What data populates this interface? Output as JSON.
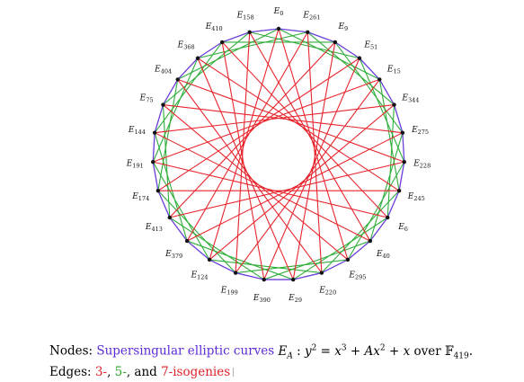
{
  "nodes": [
    {
      "name": "E",
      "sub": "0"
    },
    {
      "name": "E",
      "sub": "261"
    },
    {
      "name": "E",
      "sub": "9"
    },
    {
      "name": "E",
      "sub": "51"
    },
    {
      "name": "E",
      "sub": "15"
    },
    {
      "name": "E",
      "sub": "344"
    },
    {
      "name": "E",
      "sub": "275"
    },
    {
      "name": "E",
      "sub": "228"
    },
    {
      "name": "E",
      "sub": "245"
    },
    {
      "name": "E",
      "sub": "6"
    },
    {
      "name": "E",
      "sub": "40"
    },
    {
      "name": "E",
      "sub": "295"
    },
    {
      "name": "E",
      "sub": "220"
    },
    {
      "name": "E",
      "sub": "29"
    },
    {
      "name": "E",
      "sub": "390"
    },
    {
      "name": "E",
      "sub": "199"
    },
    {
      "name": "E",
      "sub": "124"
    },
    {
      "name": "E",
      "sub": "379"
    },
    {
      "name": "E",
      "sub": "413"
    },
    {
      "name": "E",
      "sub": "174"
    },
    {
      "name": "E",
      "sub": "191"
    },
    {
      "name": "E",
      "sub": "144"
    },
    {
      "name": "E",
      "sub": "75"
    },
    {
      "name": "E",
      "sub": "404"
    },
    {
      "name": "E",
      "sub": "368"
    },
    {
      "name": "E",
      "sub": "410"
    },
    {
      "name": "E",
      "sub": "158"
    }
  ],
  "edge_steps": {
    "blue": 1,
    "green": 4,
    "red": 11
  },
  "colors": {
    "node_edges": "#6a3fd8",
    "green_edges": "#2fae3a",
    "red_edges": "#e8252d",
    "node": "#111111"
  },
  "caption": {
    "line1_prefix": "Nodes: ",
    "line1_colored": "Supersingular elliptic curves",
    "line1_math": " E_A : y² = x³ + Ax² + x over 𝔽₄₁₉.",
    "line2_prefix": "Edges: ",
    "line2_3": "3-",
    "line2_5": "5-",
    "line2_7": "7-isogenies",
    "line2_sep1": ", ",
    "line2_sep2": ", and "
  }
}
